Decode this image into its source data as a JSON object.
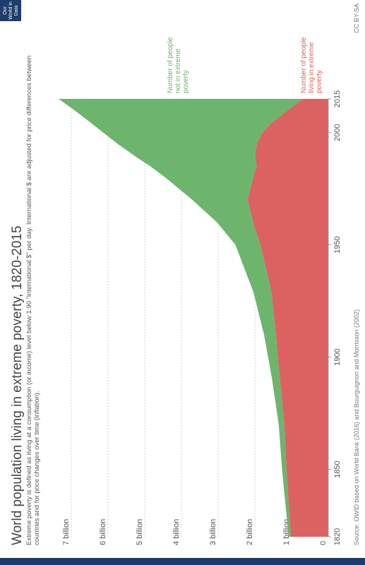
{
  "chart_data": {
    "type": "stacked_area",
    "title": "World population living in extreme poverty, 1820-2015",
    "subtitle": "Extreme poverty is defined as living at a consumption (or income) level below 1.90 \"international $\" per day. International $ are adjusted for price differences between countries and for price changes over time (inflation).",
    "source": "Source: OWID based on World Bank (2016) and Bourguignon and Morrisson (2002)",
    "license": "CC BY-SA",
    "logo": "Our World in Data",
    "x": [
      1820,
      1850,
      1870,
      1890,
      1910,
      1929,
      1950,
      1960,
      1970,
      1980,
      1985,
      1990,
      1995,
      2000,
      2005,
      2010,
      2015
    ],
    "series": [
      {
        "name": "Number of people living in extreme poverty",
        "color": "#dc6262",
        "values": [
          1.02,
          1.14,
          1.2,
          1.32,
          1.43,
          1.55,
          1.85,
          2.05,
          2.2,
          2.05,
          1.95,
          2.0,
          1.95,
          1.8,
          1.5,
          1.1,
          0.7
        ]
      },
      {
        "name": "Number of people not in extreme poverty",
        "color": "#6db46d",
        "values": [
          0.06,
          0.12,
          0.15,
          0.21,
          0.32,
          0.49,
          0.68,
          0.98,
          1.5,
          2.39,
          2.9,
          3.31,
          3.79,
          4.33,
          5.02,
          5.82,
          6.65
        ]
      }
    ],
    "xlim": [
      1820,
      2015
    ],
    "xticks": [
      1820,
      1850,
      1900,
      1950,
      2000,
      2015
    ],
    "ylim": [
      0,
      7.5
    ],
    "yticks": [
      0,
      {
        "value": 1,
        "label": "1 billion"
      },
      {
        "value": 2,
        "label": "2 billion"
      },
      {
        "value": 3,
        "label": "3 billion"
      },
      {
        "value": 4,
        "label": "4 billion"
      },
      {
        "value": 5,
        "label": "5 billion"
      },
      {
        "value": 6,
        "label": "6 billion"
      },
      {
        "value": 7,
        "label": "7 billion"
      }
    ],
    "grid": true
  }
}
